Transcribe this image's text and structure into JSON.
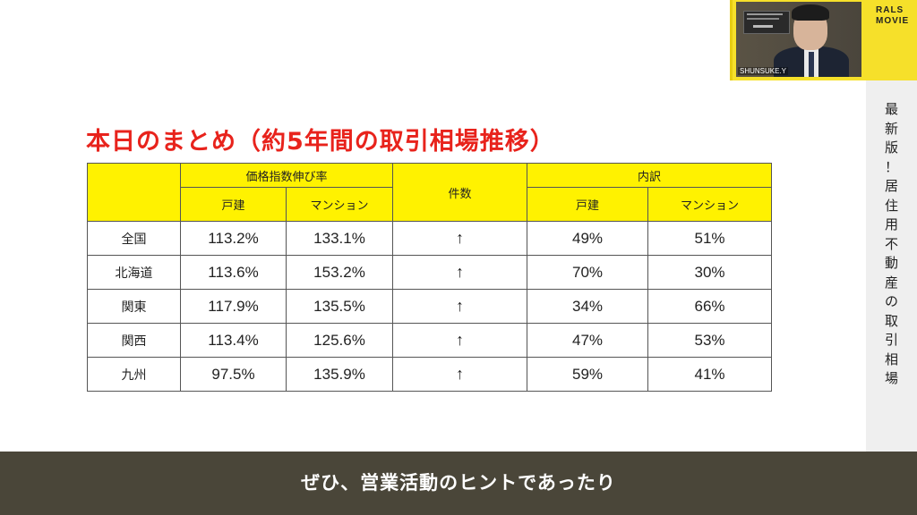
{
  "slide": {
    "title": "本日のまとめ（約5年間の取引相場推移）"
  },
  "table": {
    "header": {
      "price_index_group": "価格指数伸び率",
      "count": "件数",
      "breakdown_group": "内訳",
      "detached": "戸建",
      "mansion": "マンション",
      "detached_2": "戸建",
      "mansion_2": "マンション"
    },
    "rows": [
      {
        "region": "全国",
        "detached_index": "113.2%",
        "mansion_index": "133.1%",
        "count": "↑",
        "detached_share": "49%",
        "mansion_share": "51%"
      },
      {
        "region": "北海道",
        "detached_index": "113.6%",
        "mansion_index": "153.2%",
        "count": "↑",
        "detached_share": "70%",
        "mansion_share": "30%"
      },
      {
        "region": "関東",
        "detached_index": "117.9%",
        "mansion_index": "135.5%",
        "count": "↑",
        "detached_share": "34%",
        "mansion_share": "66%"
      },
      {
        "region": "関西",
        "detached_index": "113.4%",
        "mansion_index": "125.6%",
        "count": "↑",
        "detached_share": "47%",
        "mansion_share": "53%"
      },
      {
        "region": "九州",
        "detached_index": "97.5%",
        "mansion_index": "135.9%",
        "count": "↑",
        "detached_share": "59%",
        "mansion_share": "41%"
      }
    ]
  },
  "sidebar": {
    "chars": [
      "最",
      "新",
      "版",
      "！",
      "居",
      "住",
      "用",
      "不",
      "動",
      "産",
      "の",
      "取",
      "引",
      "相",
      "場"
    ]
  },
  "webcam": {
    "name_tag": "SHUNSUKE.Y",
    "logo_line1": "RALS",
    "logo_line2": "MOVIE"
  },
  "subtitle": {
    "text": "ぜひ、営業活動のヒントであったり"
  },
  "colors": {
    "title_red": "#e8231c",
    "header_yellow": "#fff200",
    "subtitle_bar": "#4a4639",
    "webcam_frame_yellow": "#f6e02a"
  }
}
